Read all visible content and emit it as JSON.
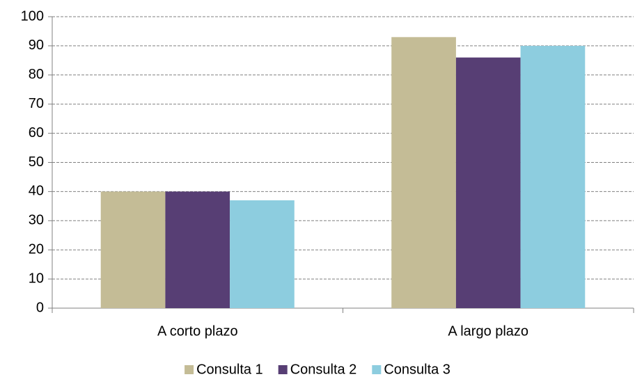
{
  "chart_data": {
    "type": "bar",
    "categories": [
      "A corto plazo",
      "A largo plazo"
    ],
    "series": [
      {
        "name": "Consulta 1",
        "color": "#c4bc96",
        "values": [
          40,
          93
        ]
      },
      {
        "name": "Consulta 2",
        "color": "#573e74",
        "values": [
          40,
          86
        ]
      },
      {
        "name": "Consulta 3",
        "color": "#8dcddf",
        "values": [
          37,
          90
        ]
      }
    ],
    "ylim": [
      0,
      100
    ],
    "yticks": [
      0,
      10,
      20,
      30,
      40,
      50,
      60,
      70,
      80,
      90,
      100
    ],
    "grid": true,
    "legend": "bottom"
  }
}
